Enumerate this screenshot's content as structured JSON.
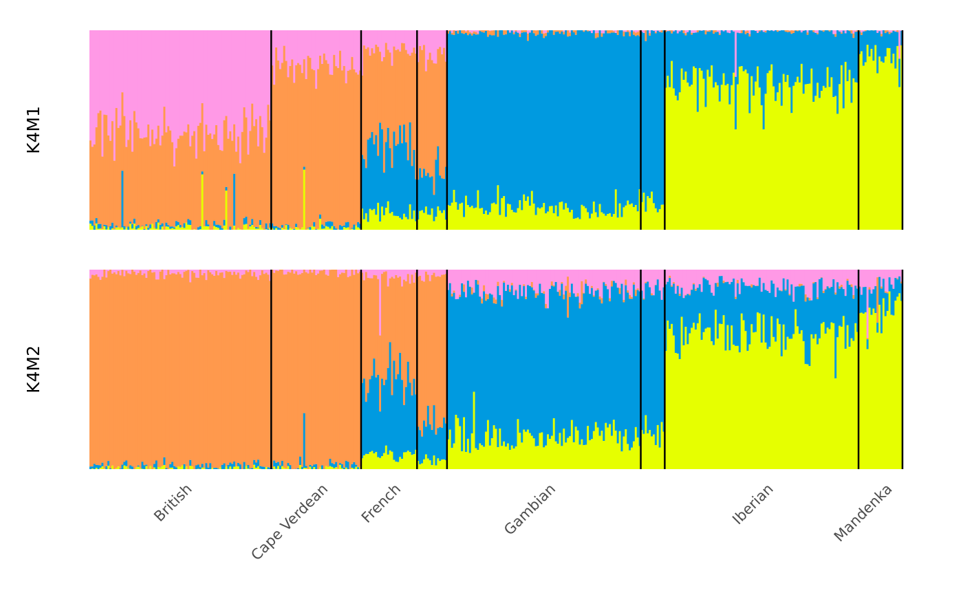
{
  "chart_data": {
    "type": "bar",
    "stacked": true,
    "normalized": true,
    "ylim": [
      0,
      1
    ],
    "components": [
      {
        "name": "",
        "color": "#ff99e6"
      },
      {
        "name": "",
        "color": "#ff994d"
      },
      {
        "name": "",
        "color": "#009ae0"
      },
      {
        "name": "",
        "color": "#e6ff00"
      }
    ],
    "populations": [
      {
        "name": "British",
        "n": 91
      },
      {
        "name": "Cape Verdean",
        "n": 45
      },
      {
        "name": "French",
        "n": 28
      },
      {
        "name": "",
        "n": 15
      },
      {
        "name": "Gambian",
        "n": 97
      },
      {
        "name": "",
        "n": 12
      },
      {
        "name": "Iberian",
        "n": 97
      },
      {
        "name": "Mandenka",
        "n": 22
      }
    ],
    "population_labels": [
      "British",
      "Cape Verdean",
      "French",
      "Gambian",
      "Iberian",
      "Mandenka"
    ],
    "panels": [
      {
        "name": "K4M1",
        "population_means": [
          [
            0.5,
            0.48,
            0.01,
            0.01
          ],
          [
            0.18,
            0.81,
            0.01,
            0.0
          ],
          [
            0.12,
            0.47,
            0.33,
            0.08
          ],
          [
            0.14,
            0.6,
            0.18,
            0.08
          ],
          [
            0.0,
            0.01,
            0.87,
            0.12
          ],
          [
            0.0,
            0.0,
            0.88,
            0.12
          ],
          [
            0.0,
            0.0,
            0.25,
            0.75
          ],
          [
            0.0,
            0.0,
            0.12,
            0.88
          ]
        ]
      },
      {
        "name": "K4M2",
        "population_means": [
          [
            0.02,
            0.97,
            0.01,
            0.0
          ],
          [
            0.01,
            0.98,
            0.01,
            0.0
          ],
          [
            0.04,
            0.52,
            0.36,
            0.08
          ],
          [
            0.04,
            0.72,
            0.18,
            0.06
          ],
          [
            0.1,
            0.01,
            0.73,
            0.16
          ],
          [
            0.1,
            0.0,
            0.7,
            0.2
          ],
          [
            0.08,
            0.0,
            0.22,
            0.7
          ],
          [
            0.08,
            0.0,
            0.12,
            0.8
          ]
        ]
      }
    ]
  }
}
